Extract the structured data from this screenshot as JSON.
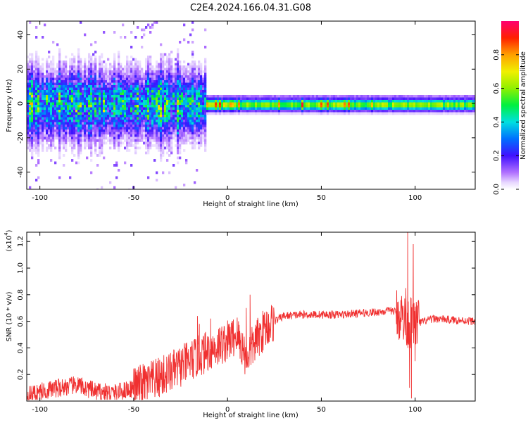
{
  "title": "C2E4.2024.166.04.31.G08",
  "chart_data": [
    {
      "type": "heatmap",
      "xlabel": "Height of straight line (km)",
      "ylabel": "Frequency (Hz)",
      "xlim": [
        -107,
        132
      ],
      "ylim": [
        -50,
        48
      ],
      "x_ticks": [
        -100,
        -50,
        0,
        50,
        100
      ],
      "y_ticks": [
        -40,
        -20,
        0,
        20,
        40
      ],
      "colorbar": {
        "label": "Normalized spectral amplitude",
        "range": [
          0,
          1
        ],
        "ticks": [
          "0.0",
          "0.2",
          "0.4",
          "0.6",
          "0.8"
        ],
        "tick_values": [
          0,
          0.2,
          0.4,
          0.6,
          0.8
        ]
      },
      "description": "Spectral amplitude concentrated near 0 Hz; broad noisy spread below ~-15 km, narrow strong band above"
    },
    {
      "type": "line",
      "xlabel": "Height of straight line (km)",
      "ylabel": "SNR (10 * v/v)",
      "scale_note": "(x10",
      "scale_exp": "4",
      "scale_close": ")",
      "xlim": [
        -107,
        132
      ],
      "ylim": [
        0,
        1.27
      ],
      "x_ticks": [
        -100,
        -50,
        0,
        50,
        100
      ],
      "y_ticks": [
        "0.2",
        "0.4",
        "0.6",
        "0.8",
        "1.0",
        "1.2"
      ],
      "y_tick_values": [
        0.2,
        0.4,
        0.6,
        0.8,
        1.0,
        1.2
      ],
      "series": [
        {
          "color": "#f03030",
          "trend": [
            [
              -107,
              0.04
            ],
            [
              -100,
              0.07
            ],
            [
              -90,
              0.1
            ],
            [
              -80,
              0.12
            ],
            [
              -70,
              0.07
            ],
            [
              -60,
              0.06
            ],
            [
              -50,
              0.1
            ],
            [
              -40,
              0.15
            ],
            [
              -30,
              0.22
            ],
            [
              -20,
              0.3
            ],
            [
              -10,
              0.38
            ],
            [
              0,
              0.45
            ],
            [
              5,
              0.5
            ],
            [
              10,
              0.33
            ],
            [
              15,
              0.45
            ],
            [
              20,
              0.55
            ],
            [
              25,
              0.6
            ],
            [
              30,
              0.64
            ],
            [
              40,
              0.65
            ],
            [
              50,
              0.65
            ],
            [
              60,
              0.65
            ],
            [
              70,
              0.66
            ],
            [
              80,
              0.67
            ],
            [
              88,
              0.68
            ],
            [
              92,
              0.65
            ],
            [
              95,
              0.6
            ],
            [
              100,
              0.58
            ],
            [
              110,
              0.62
            ],
            [
              120,
              0.61
            ],
            [
              132,
              0.6
            ]
          ],
          "spikes": [
            [
              -16,
              0.64
            ],
            [
              -15,
              0.58
            ],
            [
              -9,
              0.62
            ],
            [
              10,
              0.7
            ],
            [
              12,
              0.8
            ],
            [
              95,
              0.85
            ],
            [
              96,
              1.27
            ],
            [
              97,
              0.1
            ],
            [
              98,
              0.02
            ],
            [
              99,
              1.18
            ],
            [
              100,
              0.3
            ]
          ]
        }
      ]
    }
  ]
}
